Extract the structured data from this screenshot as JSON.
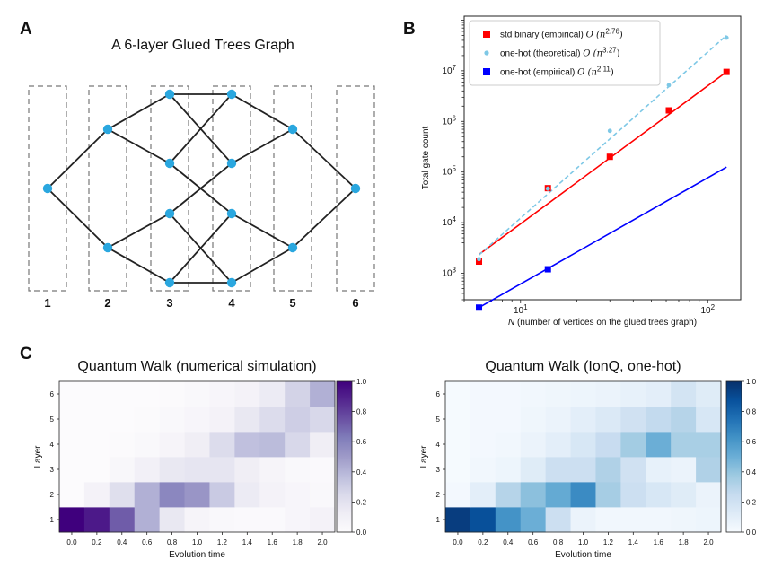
{
  "panels": {
    "a": {
      "letter": "A",
      "title": "A 6-layer Glued Trees Graph",
      "layer_labels": [
        "1",
        "2",
        "3",
        "4",
        "5",
        "6"
      ],
      "node_color": "#2aa7df",
      "edge_color": "#222222"
    },
    "b": {
      "letter": "B"
    },
    "c": {
      "letter": "C"
    }
  },
  "chart_data": [
    {
      "type": "line",
      "id": "gate-count",
      "xscale": "log",
      "yscale": "log",
      "xlim": [
        5.0,
        150
      ],
      "ylim": [
        300,
        120000000
      ],
      "xlabel": "N (number of vertices on the glued trees graph)",
      "ylabel": "Total gate count",
      "x_ticks": [
        {
          "value": 10,
          "base": "10",
          "exp": "1"
        },
        {
          "value": 100,
          "base": "10",
          "exp": "2"
        }
      ],
      "y_ticks": [
        {
          "value": 1000,
          "base": "10",
          "exp": "3"
        },
        {
          "value": 10000,
          "base": "10",
          "exp": "4"
        },
        {
          "value": 100000,
          "base": "10",
          "exp": "5"
        },
        {
          "value": 1000000,
          "base": "10",
          "exp": "6"
        },
        {
          "value": 10000000,
          "base": "10",
          "exp": "7"
        }
      ],
      "legend_position": "upper left",
      "series": [
        {
          "name": "std binary (empirical)",
          "complexity": "O",
          "exponent": "2.76",
          "color": "#ff0000",
          "marker": "square",
          "linestyle": "solid",
          "points": [
            [
              6,
              1700
            ],
            [
              14,
              48000
            ],
            [
              30,
              200000
            ],
            [
              62,
              1650000
            ],
            [
              126,
              9500000
            ]
          ],
          "fit": [
            [
              6,
              2350
            ],
            [
              126,
              9500000
            ]
          ]
        },
        {
          "name": "one-hot (theoretical)",
          "complexity": "O",
          "exponent": "3.27",
          "color": "#7ec8e6",
          "marker": "dot",
          "linestyle": "dashed",
          "points": [
            [
              6,
              1900
            ],
            [
              14,
              47000
            ],
            [
              30,
              650000
            ],
            [
              62,
              5200000
            ],
            [
              126,
              45000000
            ]
          ],
          "fit": [
            [
              6,
              2300
            ],
            [
              126,
              50000000
            ]
          ]
        },
        {
          "name": "one-hot (empirical)",
          "complexity": "O",
          "exponent": "2.11",
          "color": "#0000ff",
          "marker": "square",
          "linestyle": "solid",
          "points": [
            [
              6,
              210
            ],
            [
              14,
              1200
            ]
          ],
          "fit": [
            [
              6,
              210
            ],
            [
              126,
              125000
            ]
          ]
        }
      ]
    },
    {
      "type": "heatmap",
      "id": "numerical",
      "title": "Quantum Walk (numerical simulation)",
      "xlabel": "Evolution time",
      "ylabel": "Layer",
      "x": [
        "0.0",
        "0.2",
        "0.4",
        "0.6",
        "0.8",
        "1.0",
        "1.2",
        "1.4",
        "1.6",
        "1.8",
        "2.0"
      ],
      "y": [
        "1",
        "2",
        "3",
        "4",
        "5",
        "6"
      ],
      "colormap": "purples",
      "colorbar_ticks": [
        "0.0",
        "0.2",
        "0.4",
        "0.6",
        "0.8",
        "1.0"
      ],
      "values": [
        [
          1.0,
          0.92,
          0.72,
          0.42,
          0.16,
          0.06,
          0.03,
          0.02,
          0.02,
          0.05,
          0.08
        ],
        [
          0.0,
          0.08,
          0.22,
          0.42,
          0.58,
          0.52,
          0.32,
          0.14,
          0.08,
          0.05,
          0.03
        ],
        [
          0.0,
          0.0,
          0.04,
          0.1,
          0.16,
          0.18,
          0.18,
          0.12,
          0.06,
          0.03,
          0.02
        ],
        [
          0.0,
          0.0,
          0.01,
          0.03,
          0.06,
          0.12,
          0.24,
          0.36,
          0.38,
          0.26,
          0.12
        ],
        [
          0.0,
          0.0,
          0.0,
          0.01,
          0.03,
          0.05,
          0.08,
          0.16,
          0.24,
          0.3,
          0.26
        ],
        [
          0.0,
          0.0,
          0.0,
          0.0,
          0.01,
          0.03,
          0.05,
          0.08,
          0.14,
          0.28,
          0.42
        ]
      ]
    },
    {
      "type": "heatmap",
      "id": "ionq",
      "title": "Quantum Walk (IonQ, one-hot)",
      "xlabel": "Evolution time",
      "ylabel": "Layer",
      "x": [
        "0.0",
        "0.2",
        "0.4",
        "0.6",
        "0.8",
        "1.0",
        "1.2",
        "1.4",
        "1.6",
        "1.8",
        "2.0"
      ],
      "y": [
        "1",
        "2",
        "3",
        "4",
        "5",
        "6"
      ],
      "colormap": "blues",
      "colorbar_ticks": [
        "0.0",
        "0.2",
        "0.4",
        "0.6",
        "0.8",
        "1.0"
      ],
      "values": [
        [
          0.95,
          0.88,
          0.62,
          0.5,
          0.22,
          0.06,
          0.03,
          0.03,
          0.03,
          0.04,
          0.05
        ],
        [
          0.02,
          0.1,
          0.3,
          0.42,
          0.52,
          0.65,
          0.35,
          0.22,
          0.16,
          0.12,
          0.06
        ],
        [
          0.01,
          0.03,
          0.05,
          0.12,
          0.22,
          0.22,
          0.32,
          0.2,
          0.08,
          0.06,
          0.32
        ],
        [
          0.01,
          0.02,
          0.03,
          0.06,
          0.1,
          0.16,
          0.24,
          0.36,
          0.5,
          0.34,
          0.34
        ],
        [
          0.01,
          0.02,
          0.02,
          0.04,
          0.06,
          0.1,
          0.14,
          0.2,
          0.26,
          0.3,
          0.16
        ],
        [
          0.01,
          0.02,
          0.02,
          0.03,
          0.04,
          0.05,
          0.06,
          0.08,
          0.1,
          0.18,
          0.12
        ]
      ]
    }
  ]
}
